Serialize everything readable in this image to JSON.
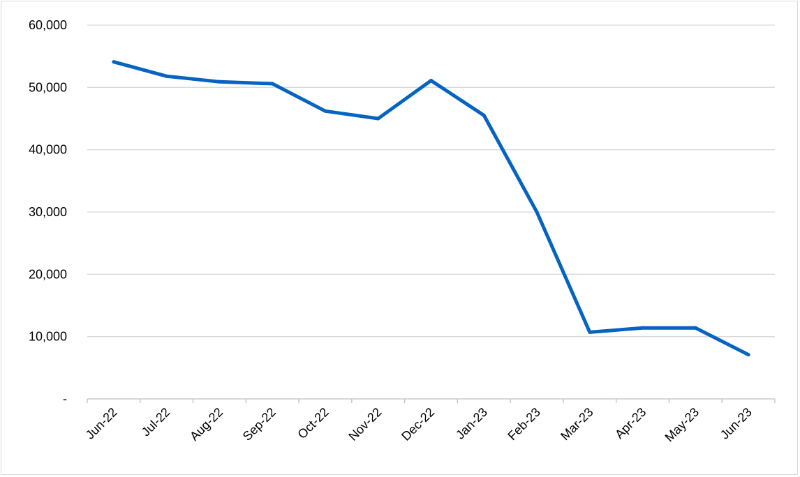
{
  "chart_data": {
    "type": "line",
    "title": "",
    "xlabel": "",
    "ylabel": "",
    "categories": [
      "Jun-22",
      "Jul-22",
      "Aug-22",
      "Sep-22",
      "Oct-22",
      "Nov-22",
      "Dec-22",
      "Jan-23",
      "Feb-23",
      "Mar-23",
      "Apr-23",
      "May-23",
      "Jun-23"
    ],
    "series": [
      {
        "values": [
          54100,
          51800,
          50900,
          50600,
          46200,
          45000,
          51100,
          45500,
          30000,
          10700,
          11400,
          11400,
          7100
        ],
        "color": "#0563c1"
      }
    ],
    "ylim": [
      0,
      60000
    ],
    "y_ticks": [
      {
        "value": 0,
        "label": "-"
      },
      {
        "value": 10000,
        "label": "10,000"
      },
      {
        "value": 20000,
        "label": "20,000"
      },
      {
        "value": 30000,
        "label": "30,000"
      },
      {
        "value": 40000,
        "label": "40,000"
      },
      {
        "value": 50000,
        "label": "50,000"
      },
      {
        "value": 60000,
        "label": "60,000"
      }
    ],
    "grid": true,
    "legend": "none",
    "colors": {
      "line": "#0563c1",
      "grid": "#d9d9d9",
      "axis": "#bfbfbf"
    }
  }
}
